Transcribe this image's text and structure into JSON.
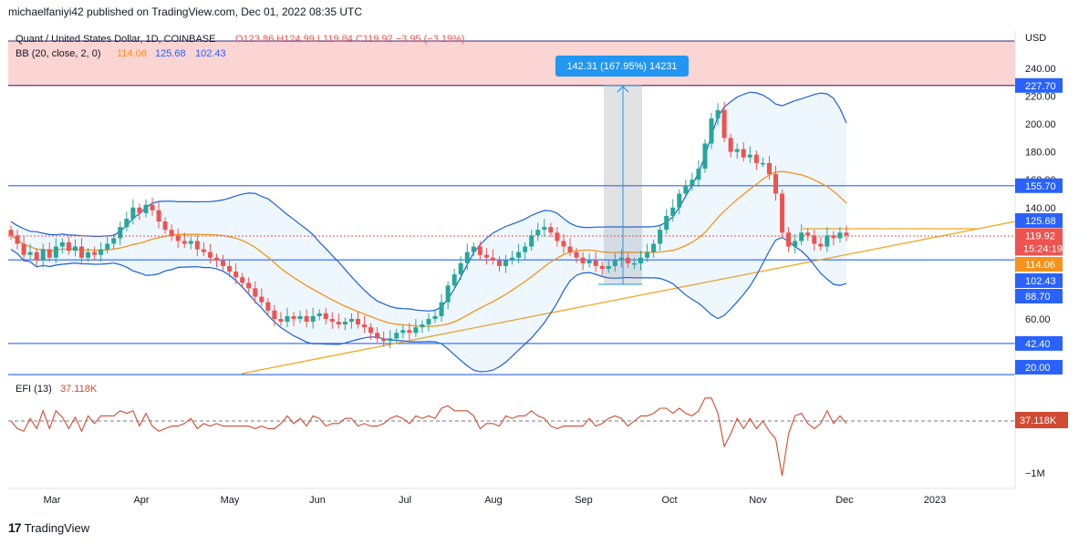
{
  "header": {
    "published": "michaelfaniyi42 published on TradingView.com, Dec 01, 2022 08:35 UTC"
  },
  "footer": {
    "brand": "TradingView"
  },
  "colors": {
    "blue_level": "#2962ff",
    "bb_band": "#1e5fd8",
    "bb_basis": "#f7931a",
    "trend": "#f5a623",
    "up_candle": "#26a69a",
    "down_candle": "#ef5350",
    "resistance_zone": "#fbd4d4",
    "measure": "#2196f3",
    "efi": "#d14a32"
  },
  "chart_data": [
    {
      "type": "candlestick",
      "symbol_line": {
        "name": "Quant / United States Dollar, 1D, COINBASE",
        "ohlc": "O123.86 H124.99 L119.84 C119.92 −3.95 (−3.19%)"
      },
      "indicator_line": {
        "name": "BB (20, close, 2, 0)",
        "basis": "114.06",
        "upper": "125.68",
        "lower": "102.43"
      },
      "currency": "USD",
      "y_ticks": [
        "240.00",
        "220.00",
        "200.00",
        "180.00",
        "160.00",
        "140.00",
        "60.00"
      ],
      "price_labels": [
        {
          "text": "227.70",
          "value": 227.7,
          "kind": "level"
        },
        {
          "text": "155.70",
          "value": 155.7,
          "kind": "level"
        },
        {
          "text": "125.68",
          "value": 125.68,
          "kind": "bb"
        },
        {
          "text": "119.92",
          "value": 119.92,
          "kind": "last",
          "sub": "15:24:19"
        },
        {
          "text": "114.06",
          "value": 114.06,
          "kind": "basis"
        },
        {
          "text": "102.43",
          "value": 102.43,
          "kind": "bb"
        },
        {
          "text": "88.70",
          "value": 88.7,
          "kind": "level"
        },
        {
          "text": "42.40",
          "value": 42.4,
          "kind": "level"
        },
        {
          "text": "20.00",
          "value": 20.0,
          "kind": "level"
        }
      ],
      "horizontal_levels": [
        227.7,
        155.7,
        102.43,
        42.4,
        20.0,
        256
      ],
      "resistance_zone": [
        227.7,
        256
      ],
      "measure_label": "142.31 (167.95%) 14231",
      "x_labels": [
        "Mar",
        "Apr",
        "May",
        "Jun",
        "Jul",
        "Aug",
        "Sep",
        "Oct",
        "Nov",
        "Dec",
        "2023"
      ],
      "closes": [
        120,
        114,
        106,
        108,
        102,
        110,
        104,
        112,
        115,
        109,
        112,
        104,
        108,
        106,
        110,
        114,
        118,
        126,
        132,
        140,
        136,
        142,
        138,
        130,
        124,
        120,
        116,
        114,
        116,
        110,
        108,
        104,
        102,
        98,
        94,
        90,
        86,
        82,
        76,
        72,
        66,
        60,
        58,
        62,
        60,
        62,
        58,
        62,
        64,
        60,
        58,
        56,
        58,
        60,
        56,
        54,
        50,
        46,
        44,
        46,
        50,
        52,
        50,
        54,
        56,
        60,
        62,
        72,
        84,
        92,
        100,
        108,
        112,
        106,
        104,
        102,
        98,
        102,
        104,
        108,
        112,
        120,
        124,
        126,
        122,
        116,
        112,
        108,
        104,
        100,
        102,
        98,
        96,
        98,
        102,
        104,
        100,
        100,
        104,
        108,
        114,
        124,
        134,
        140,
        150,
        156,
        160,
        168,
        186,
        204,
        210,
        190,
        180,
        182,
        176,
        178,
        172,
        172,
        164,
        150,
        122,
        112,
        116,
        122,
        120,
        114,
        112,
        120,
        118,
        122,
        120
      ]
    },
    {
      "type": "line",
      "indicator": {
        "name": "EFI (13)",
        "value": "37.118K"
      },
      "y_ticks": [
        "−1M"
      ],
      "value_label": "37.118K"
    }
  ]
}
